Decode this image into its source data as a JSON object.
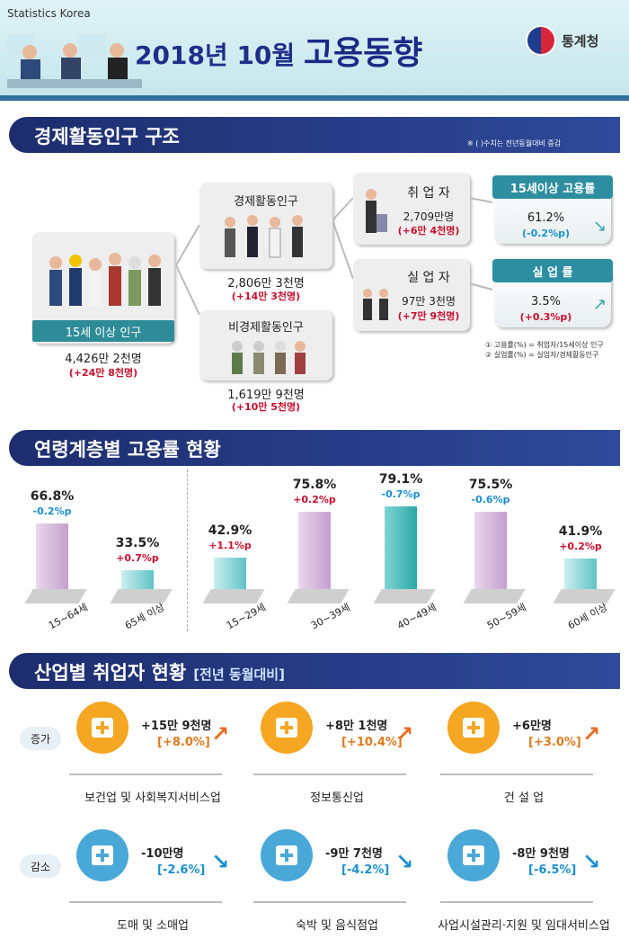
{
  "header": {
    "brand_en": "Statistics Korea",
    "title_year": "2018년 10월",
    "title_main": "고용동향",
    "agency": "통계청"
  },
  "section1": {
    "title": "경제활동인구 구조",
    "note": "※ ( )수치는 전년동월대비 증감"
  },
  "pop15": {
    "label": "15세 이상 인구",
    "value": "4,426만 2천명",
    "change": "(+24만 8천명)"
  },
  "active": {
    "label": "경제활동인구",
    "value": "2,806만 3천명",
    "change": "(+14만 3천명)"
  },
  "inactive": {
    "label": "비경제활동인구",
    "value": "1,619만 9천명",
    "change": "(+10만 5천명)"
  },
  "employed": {
    "label": "취 업 자",
    "value": "2,709만명",
    "change": "(+6만 4천명)"
  },
  "unemployed": {
    "label": "실 업 자",
    "value": "97만 3천명",
    "change": "(+7만 9천명)"
  },
  "emp_rate": {
    "label": "15세이상 고용률",
    "value": "61.2%",
    "change": "(-0.2%p)"
  },
  "unemp_rate": {
    "label": "실 업 률",
    "value": "3.5%",
    "change": "(+0.3%p)"
  },
  "footnotes": {
    "f1": "① 고용률(%) = 취업자/15세이상 인구",
    "f2": "② 실업률(%) = 실업자/경제활동인구"
  },
  "section2": {
    "title": "연령계층별 고용률 현황"
  },
  "chart_data": {
    "type": "bar",
    "title": "연령계층별 고용률 현황",
    "categories": [
      "15~64세",
      "65세 이상",
      "15~29세",
      "30~39세",
      "40~49세",
      "50~59세",
      "60세 이상"
    ],
    "values": [
      66.8,
      33.5,
      42.9,
      75.8,
      79.1,
      75.5,
      41.9
    ],
    "value_labels": [
      "66.8%",
      "33.5%",
      "42.9%",
      "75.8%",
      "79.1%",
      "75.5%",
      "41.9%"
    ],
    "changes": [
      "-0.2%p",
      "+0.7%p",
      "+1.1%p",
      "+0.2%p",
      "-0.7%p",
      "-0.6%p",
      "+0.2%p"
    ],
    "change_colors": [
      "#1a8fd0",
      "#c8102e",
      "#c8102e",
      "#c8102e",
      "#1a8fd0",
      "#1a8fd0",
      "#c8102e"
    ],
    "bar_colors": [
      "purple",
      "teal",
      "teal",
      "purple",
      "tealD",
      "purple",
      "teal"
    ],
    "ylim": [
      0,
      100
    ]
  },
  "section3": {
    "title": "산업별 취업자 현황",
    "sub": "[전년 동월대비]"
  },
  "tags": {
    "inc": "증가",
    "dec": "감소"
  },
  "industries": [
    {
      "name": "보건업 및 사회복지서비스업",
      "value": "+15만 9천명",
      "pct": "[+8.0%]"
    },
    {
      "name": "정보통신업",
      "value": "+8만 1천명",
      "pct": "[+10.4%]"
    },
    {
      "name": "건 설 업",
      "value": "+6만명",
      "pct": "[+3.0%]"
    },
    {
      "name": "도매 및 소매업",
      "value": "-10만명",
      "pct": "[-2.6%]"
    },
    {
      "name": "숙박 및 음식점업",
      "value": "-9만 7천명",
      "pct": "[-4.2%]"
    },
    {
      "name": "사업시설관리·지원 및 임대서비스업",
      "value": "-8만 9천명",
      "pct": "[-6.5%]"
    }
  ],
  "colors": {
    "navy": "#1d2d6e",
    "red": "#c8102e",
    "blue": "#1a8fd0",
    "orange": "#f5a623",
    "sky": "#4aa8d8"
  }
}
